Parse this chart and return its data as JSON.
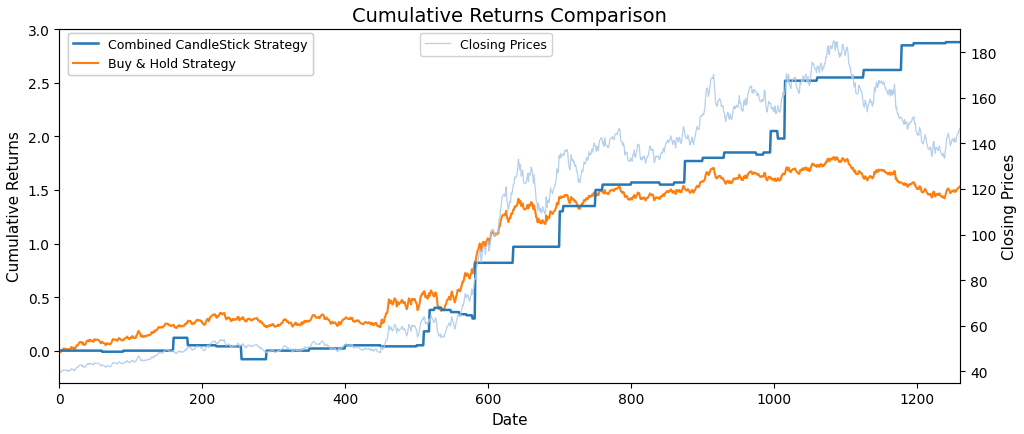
{
  "n": 1260,
  "title": "Cumulative Returns Comparison",
  "xlabel": "Date",
  "ylabel_left": "Cumulative Returns",
  "ylabel_right": "Closing Prices",
  "legend1_label": "Combined CandleStick Strategy",
  "legend2_label": "Buy & Hold Strategy",
  "legend3_label": "Closing Prices",
  "color_cs": "#2878b5",
  "color_bh": "#ff7f0e",
  "color_cp": "#a8c8e8",
  "ylim_left": [
    -0.3,
    3.0
  ],
  "ylim_right": [
    35,
    190
  ],
  "xlim": [
    0,
    1260
  ],
  "yticks_left": [
    0.0,
    0.5,
    1.0,
    1.5,
    2.0,
    2.5,
    3.0
  ],
  "yticks_right": [
    40,
    60,
    80,
    100,
    120,
    140,
    160,
    180
  ],
  "xticks": [
    0,
    200,
    400,
    600,
    800,
    1000,
    1200
  ],
  "title_fontsize": 14,
  "axis_fontsize": 11,
  "tick_fontsize": 10,
  "linewidth_cs": 1.8,
  "linewidth_bh": 1.5,
  "linewidth_cp": 0.9,
  "bg_color": "#ffffff"
}
